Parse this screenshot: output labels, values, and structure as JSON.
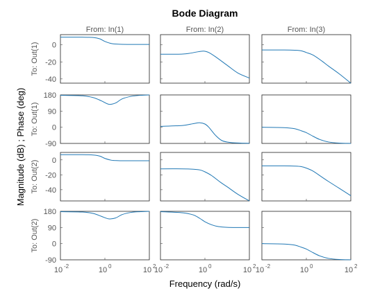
{
  "chart_data": {
    "type": "line",
    "title": "Bode Diagram",
    "xlabel": "Frequency  (rad/s)",
    "ylabel": "Magnitude (dB) ; Phase (deg)",
    "x_scale": "log",
    "x_ticks": {
      "values": [
        0.01,
        1,
        100
      ],
      "base": "10",
      "exponents": [
        "-2",
        "0",
        "2"
      ]
    },
    "xlim": [
      0.01,
      100
    ],
    "columns": [
      "From: In(1)",
      "From: In(2)",
      "From: In(3)"
    ],
    "rows": [
      {
        "label": "To: Out(1)",
        "kind": "magnitude",
        "ylim": [
          -45,
          12
        ],
        "yticks": [
          0,
          -20,
          -40
        ]
      },
      {
        "label": "To: Out(1)",
        "kind": "phase",
        "ylim": [
          -90,
          180
        ],
        "yticks": [
          180,
          90,
          0,
          -90
        ]
      },
      {
        "label": "To: Out(2)",
        "kind": "magnitude",
        "ylim": [
          -55,
          10
        ],
        "yticks": [
          0,
          -20,
          -40
        ]
      },
      {
        "label": "To: Out(2)",
        "kind": "phase",
        "ylim": [
          -90,
          180
        ],
        "yticks": [
          180,
          90,
          0,
          -90
        ]
      }
    ],
    "series": [
      {
        "row": 0,
        "col": 0,
        "x": [
          0.01,
          0.1,
          0.3,
          0.6,
          1,
          2,
          4,
          10,
          30,
          100
        ],
        "y": [
          9,
          9,
          8.6,
          7,
          4,
          1.5,
          0.8,
          0.5,
          0.5,
          0.5
        ]
      },
      {
        "row": 0,
        "col": 1,
        "x": [
          0.01,
          0.05,
          0.1,
          0.2,
          0.4,
          0.7,
          1,
          1.5,
          3,
          10,
          30,
          100
        ],
        "y": [
          -11,
          -11,
          -10.8,
          -10,
          -8.5,
          -7.5,
          -7.5,
          -9,
          -14,
          -24,
          -33,
          -39
        ]
      },
      {
        "row": 0,
        "col": 2,
        "x": [
          0.01,
          0.1,
          0.3,
          0.6,
          1,
          2,
          5,
          10,
          30,
          100
        ],
        "y": [
          -6,
          -6,
          -6.3,
          -7,
          -9,
          -12,
          -19,
          -25,
          -34,
          -45
        ]
      },
      {
        "row": 1,
        "col": 0,
        "x": [
          0.01,
          0.1,
          0.3,
          0.7,
          1.5,
          3,
          6,
          15,
          40,
          100
        ],
        "y": [
          178,
          175,
          165,
          147,
          128,
          135,
          158,
          172,
          178,
          180
        ]
      },
      {
        "row": 1,
        "col": 1,
        "x": [
          0.01,
          0.1,
          0.3,
          0.6,
          1,
          1.5,
          3,
          6,
          15,
          40,
          100
        ],
        "y": [
          5,
          10,
          20,
          25,
          18,
          0,
          -45,
          -75,
          -85,
          -88,
          -89
        ]
      },
      {
        "row": 1,
        "col": 2,
        "x": [
          0.01,
          0.1,
          0.3,
          0.6,
          1,
          2,
          4,
          10,
          30,
          100
        ],
        "y": [
          0,
          -2,
          -8,
          -20,
          -30,
          -50,
          -68,
          -82,
          -88,
          -90
        ]
      },
      {
        "row": 2,
        "col": 0,
        "x": [
          0.01,
          0.1,
          0.3,
          0.6,
          1,
          2,
          4,
          10,
          30,
          100
        ],
        "y": [
          7,
          7,
          6.5,
          5,
          2,
          -0.5,
          -1,
          -1.2,
          -1.2,
          -1.2
        ]
      },
      {
        "row": 2,
        "col": 1,
        "x": [
          0.01,
          0.1,
          0.3,
          0.6,
          1,
          2,
          5,
          10,
          30,
          100
        ],
        "y": [
          -12,
          -12,
          -12.5,
          -13.5,
          -16,
          -21,
          -30,
          -36,
          -46,
          -55
        ]
      },
      {
        "row": 2,
        "col": 2,
        "x": [
          0.01,
          0.1,
          0.3,
          0.6,
          1,
          2,
          5,
          10,
          30,
          100
        ],
        "y": [
          -8,
          -8,
          -8.3,
          -9,
          -11,
          -15,
          -23,
          -29,
          -38,
          -48
        ]
      },
      {
        "row": 3,
        "col": 0,
        "x": [
          0.01,
          0.1,
          0.3,
          0.7,
          1.5,
          3,
          6,
          15,
          40,
          100
        ],
        "y": [
          178,
          176,
          168,
          152,
          138,
          143,
          162,
          174,
          178,
          180
        ]
      },
      {
        "row": 3,
        "col": 1,
        "x": [
          0.01,
          0.1,
          0.3,
          0.6,
          1,
          2,
          4,
          10,
          30,
          100
        ],
        "y": [
          178,
          172,
          160,
          140,
          122,
          105,
          95,
          91,
          90,
          90
        ]
      },
      {
        "row": 3,
        "col": 2,
        "x": [
          0.01,
          0.1,
          0.3,
          0.6,
          1,
          2,
          4,
          10,
          30,
          100
        ],
        "y": [
          0,
          -2,
          -8,
          -20,
          -30,
          -50,
          -68,
          -82,
          -88,
          -90
        ]
      }
    ]
  }
}
